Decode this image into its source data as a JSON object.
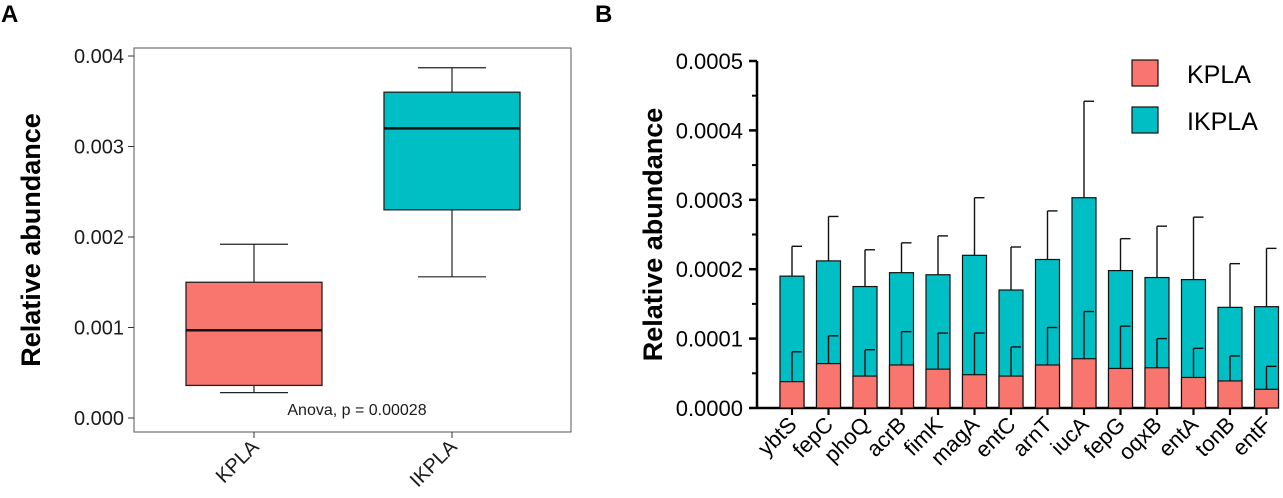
{
  "chart_data": [
    {
      "panel": "A",
      "type": "boxplot",
      "ylabel": "Relative abundance",
      "ylim": [
        0,
        0.004
      ],
      "yticks": [
        "0.000",
        "0.001",
        "0.002",
        "0.003",
        "0.004"
      ],
      "categories": [
        "KPLA",
        "IKPLA"
      ],
      "boxes": [
        {
          "name": "KPLA",
          "min": 0.00028,
          "q1": 0.00036,
          "median": 0.00097,
          "q3": 0.0015,
          "max": 0.00192,
          "color": "#F8766D"
        },
        {
          "name": "IKPLA",
          "min": 0.00156,
          "q1": 0.0023,
          "median": 0.0032,
          "q3": 0.0036,
          "max": 0.00387,
          "color": "#00BFC4"
        }
      ],
      "annotation": "Anova, p = 0.00028"
    },
    {
      "panel": "B",
      "type": "bar",
      "stacked": true,
      "ylabel": "Relative abundance",
      "ylim": [
        0,
        0.0005
      ],
      "yticks": [
        "0.0000",
        "0.0001",
        "0.0002",
        "0.0003",
        "0.0004",
        "0.0005"
      ],
      "categories": [
        "ybtS",
        "fepC",
        "phoQ",
        "acrB",
        "fimK",
        "magA",
        "entC",
        "arnT",
        "iucA",
        "fepG",
        "oqxB",
        "entA",
        "tonB",
        "entF"
      ],
      "series": [
        {
          "name": "KPLA",
          "color": "#F8766D",
          "values": [
            3.8e-05,
            6.4e-05,
            4.6e-05,
            6.2e-05,
            5.6e-05,
            4.8e-05,
            4.6e-05,
            6.2e-05,
            7.1e-05,
            5.7e-05,
            5.8e-05,
            4.4e-05,
            3.9e-05,
            2.7e-05
          ],
          "errors": [
            8.1e-05,
            0.000104,
            8.4e-05,
            0.00011,
            0.000108,
            0.000108,
            8.8e-05,
            0.000116,
            0.000139,
            0.000118,
            0.0001,
            8.6e-05,
            7.5e-05,
            6e-05
          ]
        },
        {
          "name": "IKPLA",
          "color": "#00BFC4",
          "values": [
            0.00019,
            0.000212,
            0.000175,
            0.000195,
            0.000192,
            0.00022,
            0.00017,
            0.000214,
            0.000303,
            0.000198,
            0.000188,
            0.000185,
            0.000145,
            0.000146
          ],
          "errors": [
            0.000233,
            0.000276,
            0.000228,
            0.000238,
            0.000248,
            0.000303,
            0.000232,
            0.000284,
            0.000442,
            0.000244,
            0.000262,
            0.000275,
            0.000208,
            0.00023
          ]
        }
      ],
      "legend": [
        "KPLA",
        "IKPLA"
      ]
    }
  ]
}
